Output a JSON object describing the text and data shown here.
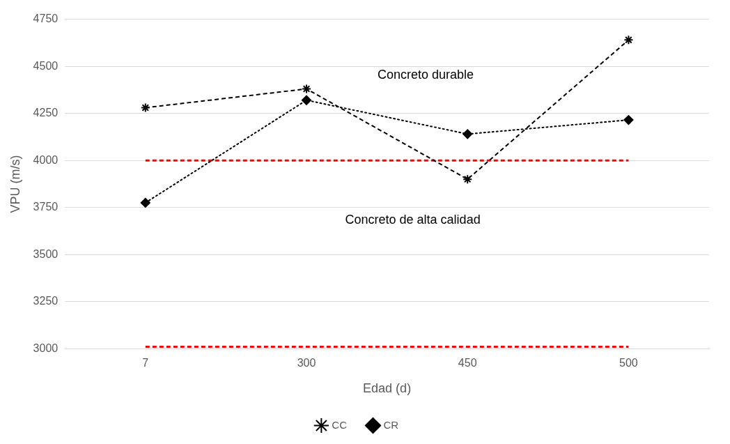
{
  "chart_data": {
    "type": "line",
    "xlabel": "Edad (d)",
    "ylabel": "VPU (m/s)",
    "categories": [
      "7",
      "300",
      "450",
      "500"
    ],
    "series": [
      {
        "name": "CC",
        "color": "#000000",
        "values": [
          4280,
          4380,
          3900,
          4640
        ],
        "marker": "cross",
        "line_style": "dashed"
      },
      {
        "name": "CR",
        "color": "#000000",
        "values": [
          3775,
          4320,
          4140,
          4215
        ],
        "marker": "diamond",
        "line_style": "dotted"
      },
      {
        "color": "#ff0000",
        "values": [
          4000,
          4000,
          4000,
          4000
        ],
        "marker": "none",
        "line_style": "dashed"
      },
      {
        "color": "#ff0000",
        "values": [
          3010,
          3010,
          3010,
          3010
        ],
        "marker": "none",
        "line_style": "dashed"
      }
    ],
    "ylim": [
      3000,
      4750
    ],
    "yticks": [
      3000,
      3250,
      3500,
      3750,
      4000,
      4250,
      4500,
      4750
    ],
    "grid": "y",
    "legend": "bottom",
    "annotations": [
      "Concreto durable",
      "Concreto de alta calidad"
    ]
  }
}
